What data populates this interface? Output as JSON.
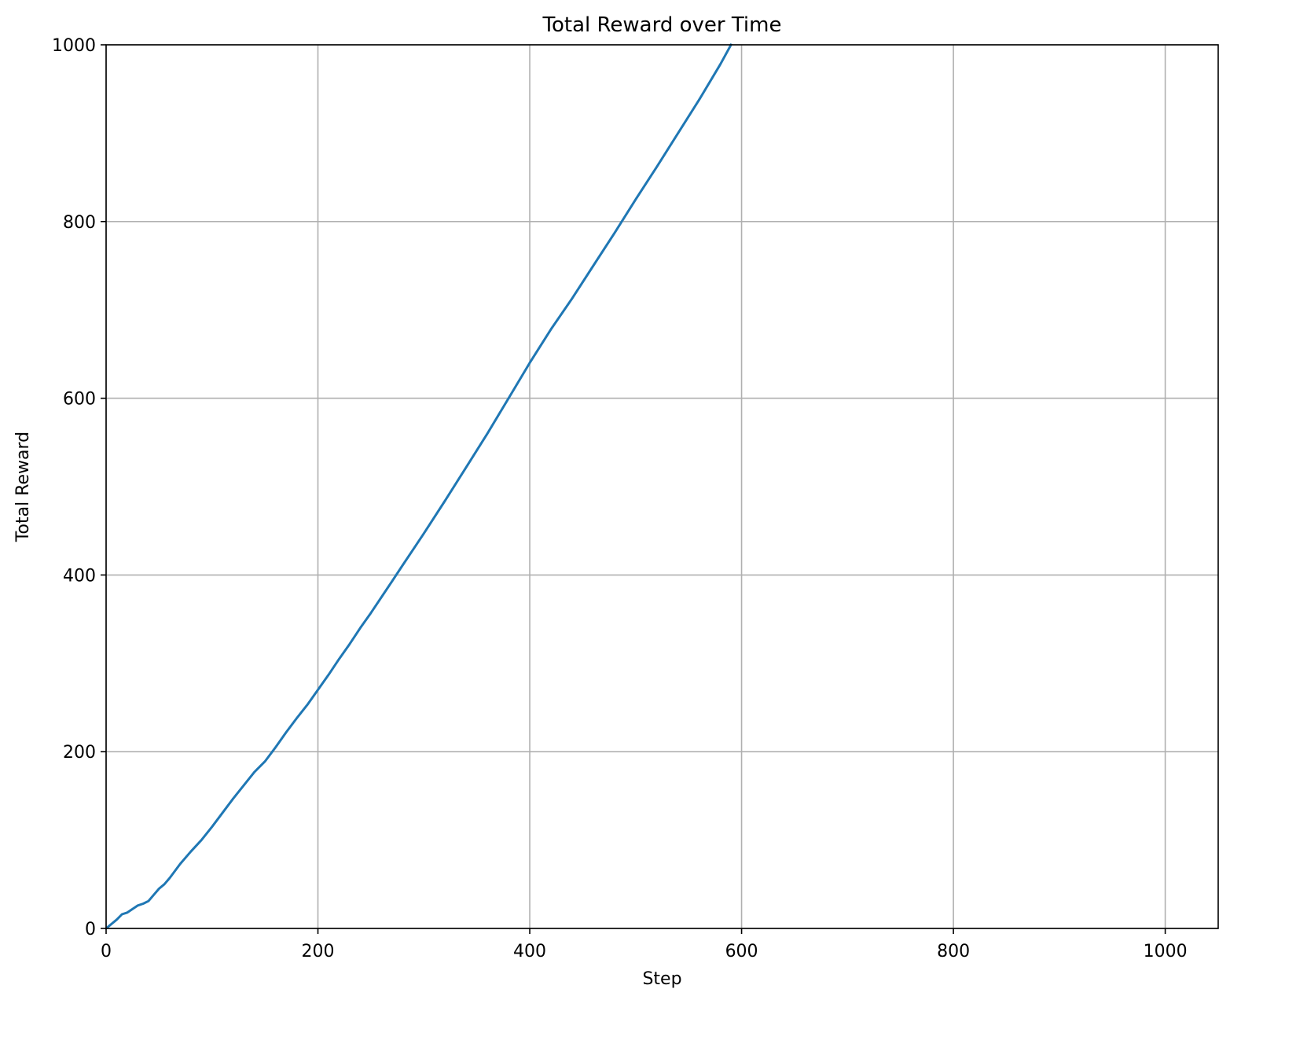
{
  "chart_data": {
    "type": "line",
    "title": "Total Reward over Time",
    "xlabel": "Step",
    "ylabel": "Total Reward",
    "xlim": [
      0,
      1050
    ],
    "ylim": [
      0,
      1000
    ],
    "x_ticks": [
      0,
      200,
      400,
      600,
      800,
      1000
    ],
    "y_ticks": [
      0,
      200,
      400,
      600,
      800,
      1000
    ],
    "x_tick_labels": [
      "0",
      "200",
      "400",
      "600",
      "800",
      "1000"
    ],
    "y_tick_labels": [
      "0",
      "200",
      "400",
      "600",
      "800",
      "1000"
    ],
    "grid": true,
    "legend": "none",
    "series": [
      {
        "color": "#1f77b4",
        "x": [
          0,
          10,
          15,
          20,
          25,
          30,
          35,
          40,
          45,
          50,
          55,
          60,
          65,
          70,
          80,
          90,
          100,
          110,
          120,
          130,
          140,
          150,
          160,
          170,
          180,
          190,
          200,
          210,
          220,
          230,
          240,
          250,
          260,
          270,
          280,
          290,
          300,
          320,
          340,
          360,
          380,
          400,
          420,
          440,
          460,
          480,
          500,
          520,
          540,
          560,
          580,
          590
        ],
        "y": [
          0,
          10,
          16,
          18,
          22,
          26,
          28,
          31,
          38,
          45,
          50,
          57,
          65,
          73,
          87,
          100,
          115,
          131,
          147,
          162,
          177,
          189,
          205,
          222,
          238,
          253,
          270,
          287,
          305,
          322,
          340,
          357,
          375,
          393,
          411,
          429,
          447,
          484,
          522,
          560,
          600,
          640,
          678,
          713,
          750,
          787,
          825,
          862,
          900,
          938,
          978,
          1000
        ]
      }
    ]
  }
}
